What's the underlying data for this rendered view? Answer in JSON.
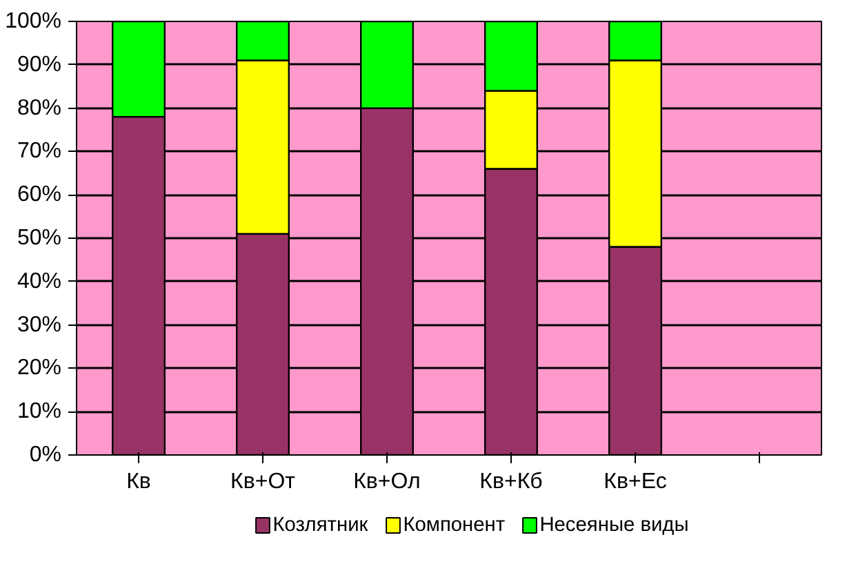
{
  "chart_data": {
    "type": "bar",
    "stacked": true,
    "categories": [
      "Кв",
      "Кв+От",
      "Кв+Ол",
      "Кв+Кб",
      "Кв+Ес",
      null
    ],
    "series": [
      {
        "name": "Козлятник",
        "color": "#993366",
        "values": [
          78,
          51,
          80,
          66,
          48,
          null
        ]
      },
      {
        "name": "Компонент",
        "color": "#ffff00",
        "values": [
          null,
          40,
          null,
          18,
          43,
          null
        ]
      },
      {
        "name": "Несеяные виды",
        "color": "#00ff00",
        "values": [
          22,
          9,
          20,
          16,
          9,
          null
        ]
      }
    ],
    "ylim": [
      0,
      100
    ],
    "yticks": [
      {
        "value": 0,
        "label": "0%"
      },
      {
        "value": 10,
        "label": "10%"
      },
      {
        "value": 20,
        "label": "20%"
      },
      {
        "value": 30,
        "label": "30%"
      },
      {
        "value": 40,
        "label": "40%"
      },
      {
        "value": 50,
        "label": "50%"
      },
      {
        "value": 60,
        "label": "60%"
      },
      {
        "value": 70,
        "label": "70%"
      },
      {
        "value": 80,
        "label": "80%"
      },
      {
        "value": 90,
        "label": "90%"
      },
      {
        "value": 100,
        "label": "100%"
      }
    ],
    "grid": "y",
    "legend": "bottom"
  }
}
